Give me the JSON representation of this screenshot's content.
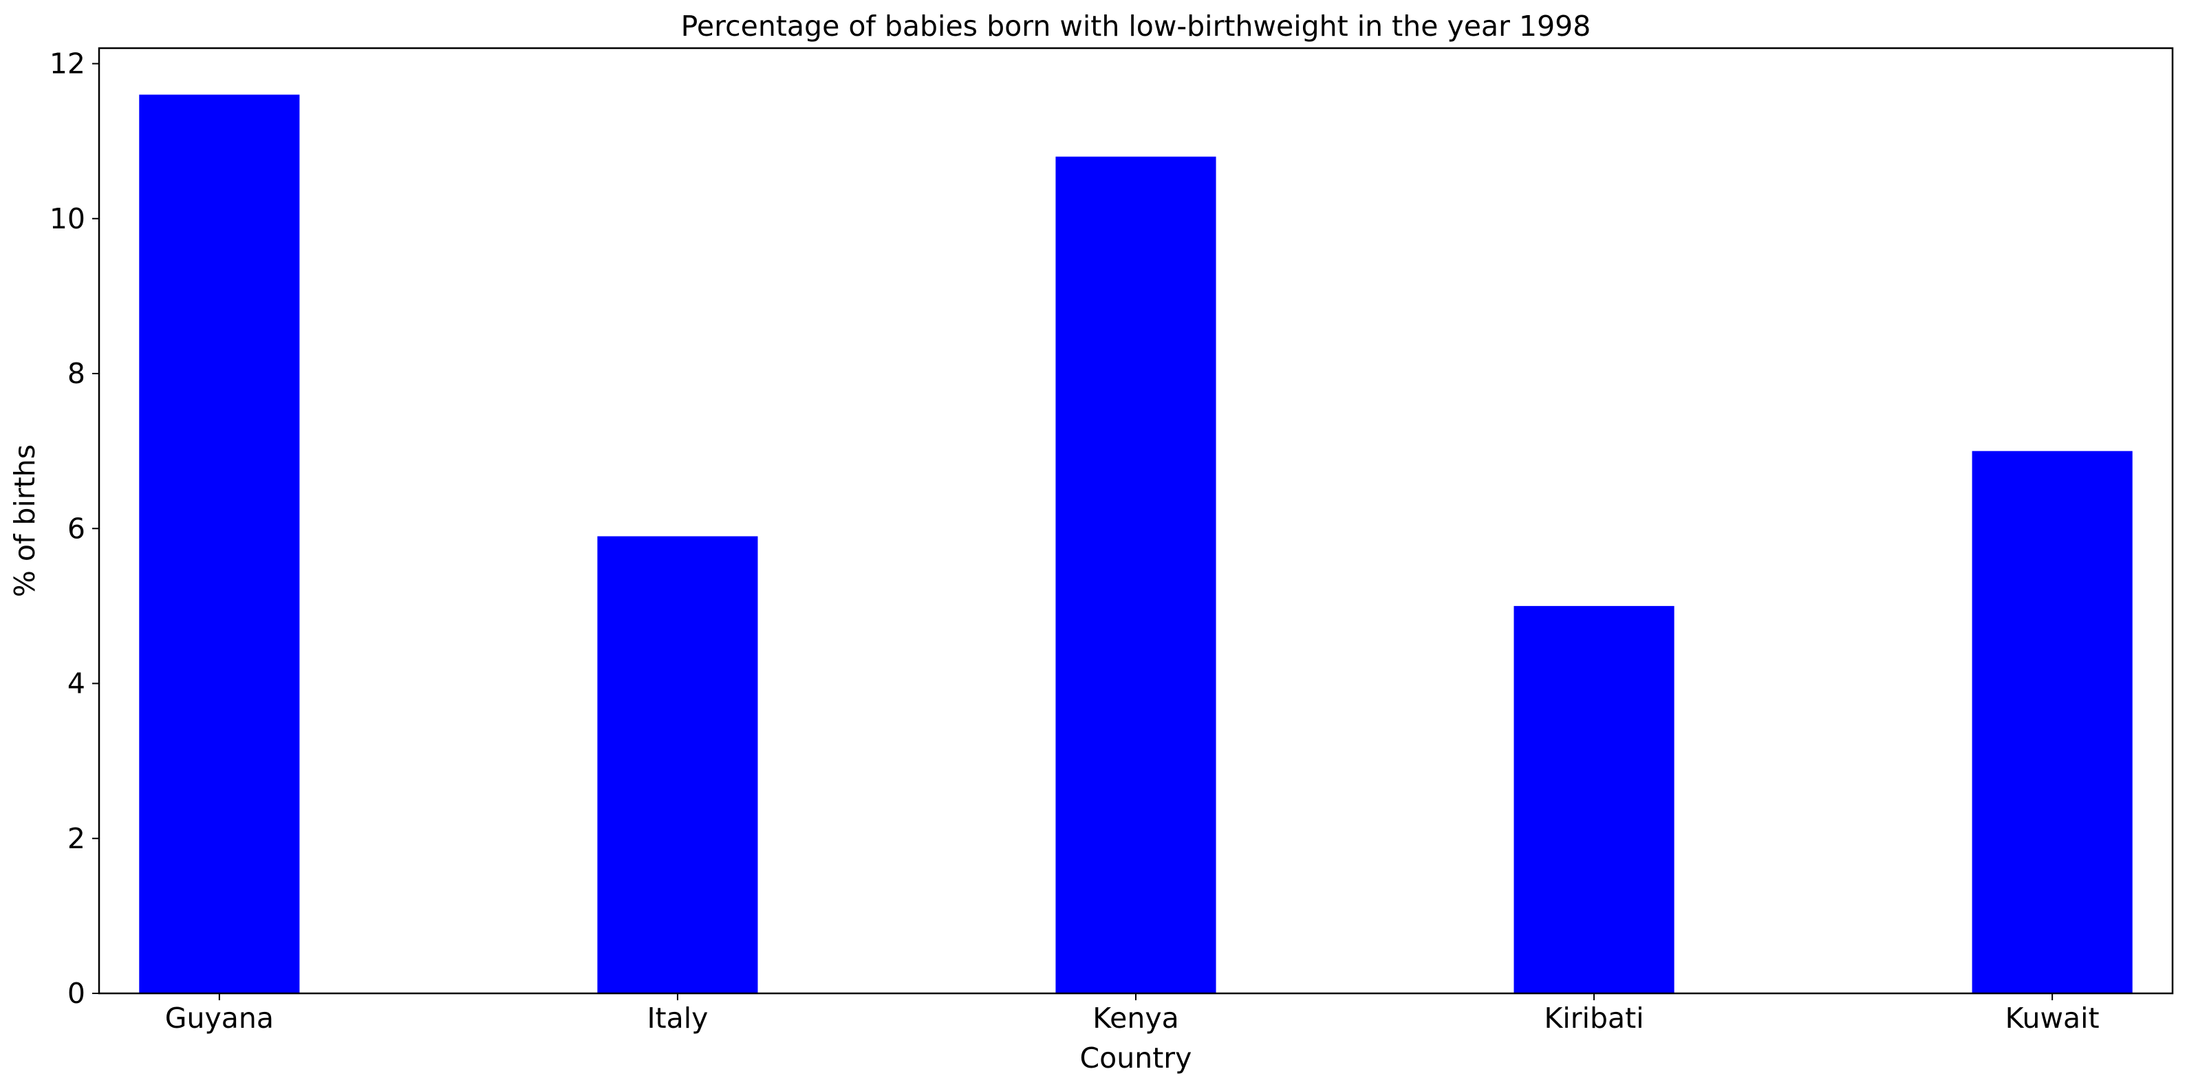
{
  "chart_data": {
    "type": "bar",
    "title": "Percentage of babies born with low-birthweight in the year 1998",
    "xlabel": "Country",
    "ylabel": "% of births",
    "categories": [
      "Guyana",
      "Italy",
      "Kenya",
      "Kiribati",
      "Kuwait"
    ],
    "values": [
      11.6,
      5.9,
      10.8,
      5.0,
      7.0
    ],
    "ylim": [
      0,
      12.2
    ],
    "yticks": [
      0,
      2,
      4,
      6,
      8,
      10,
      12
    ],
    "bar_color": "#0000ff",
    "grid": false,
    "legend": "none"
  }
}
